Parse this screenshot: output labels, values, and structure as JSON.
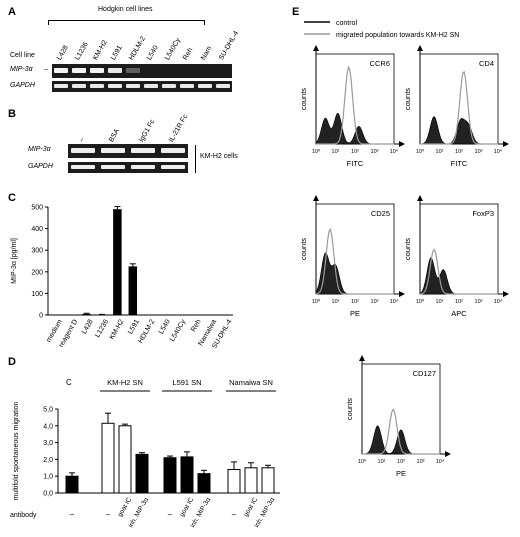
{
  "panel_a": {
    "label": "A",
    "header": "Hodgkin cell lines",
    "row_label": "Cell line",
    "lanes": [
      "L428",
      "L1236",
      "KM-H2",
      "L591",
      "HDLM-2",
      "L540",
      "L540Cy",
      "Reh",
      "Nam",
      "SU-DHL-4"
    ],
    "genes": [
      "MIP-3α",
      "GAPDH"
    ],
    "mip_intensity": [
      0.95,
      0.95,
      0.95,
      0.9,
      0.3,
      0,
      0,
      0,
      0,
      0
    ]
  },
  "panel_b": {
    "label": "B",
    "lanes": [
      "–",
      "BSA",
      "IgG1 Fc",
      "IL-21R Fc"
    ],
    "genes": [
      "MIP-3α",
      "GAPDH"
    ],
    "side_label": "KM-H2 cells"
  },
  "panel_c": {
    "label": "C",
    "chart_data": {
      "type": "bar",
      "categories": [
        "medium",
        "reagent D",
        "L428",
        "L1236",
        "KM-H2",
        "L591",
        "HDLM-2",
        "L540",
        "L540Cy",
        "Reh",
        "Namalwa",
        "SU-DHL-4"
      ],
      "values": [
        0,
        0,
        5,
        2,
        490,
        225,
        0,
        0,
        0,
        0,
        0,
        0
      ],
      "errors": [
        0,
        0,
        3,
        1,
        12,
        12,
        0,
        0,
        0,
        0,
        0,
        0
      ],
      "ylabel": "MIP-3α [pg/ml]",
      "ylim": [
        0,
        500
      ],
      "yticks": [
        "0",
        "100",
        "200",
        "300",
        "400",
        "500"
      ]
    }
  },
  "panel_d": {
    "label": "D",
    "corner_letter": "C",
    "groups": [
      "KM-H2 SN",
      "L591 SN",
      "Namalwa SN"
    ],
    "ylabel": "multifold spontaneous migration",
    "antibody_label": "antibody",
    "chart_data": {
      "type": "bar",
      "categories": [
        "C",
        "KM-H2 SN –",
        "KM-H2 SN goat IC",
        "KM-H2 SN inh. MIP-3α",
        "L591 SN –",
        "L591 SN goat IC",
        "L591 SN inh. MIP-3α",
        "Namalwa SN –",
        "Namalwa SN goat IC",
        "Namalwa SN inh. MIP-3α"
      ],
      "values": [
        1.0,
        4.15,
        4.0,
        2.3,
        2.1,
        2.15,
        1.15,
        1.4,
        1.5,
        1.5
      ],
      "errors": [
        0.2,
        0.6,
        0.1,
        0.1,
        0.1,
        0.3,
        0.2,
        0.45,
        0.3,
        0.15
      ],
      "fill": [
        "black",
        "white",
        "white",
        "black",
        "black",
        "black",
        "black",
        "white",
        "white",
        "white"
      ],
      "ylim": [
        0,
        5
      ],
      "yticks": [
        "0,0",
        "1,0",
        "2,0",
        "3,0",
        "4,0",
        "5,0"
      ],
      "xticklabels": [
        "–",
        "–",
        "goat IC",
        "inh. MIP-3α",
        "–",
        "goat IC",
        "inh. MIP-3α",
        "–",
        "goat IC",
        "inh. MIP-3α"
      ]
    }
  },
  "panel_e": {
    "label": "E",
    "legend": [
      "control",
      "migrated population towards KM-H2 SN"
    ],
    "ylabel": "counts",
    "xticks": [
      "10⁰",
      "10¹",
      "10²",
      "10³",
      "10⁴"
    ],
    "plots": [
      {
        "marker": "CCR6",
        "xlabel": "FITC"
      },
      {
        "marker": "CD4",
        "xlabel": "FITC"
      },
      {
        "marker": "CD25",
        "xlabel": "PE"
      },
      {
        "marker": "FoxP3",
        "xlabel": "APC"
      },
      {
        "marker": "CD127",
        "xlabel": "PE"
      }
    ]
  }
}
